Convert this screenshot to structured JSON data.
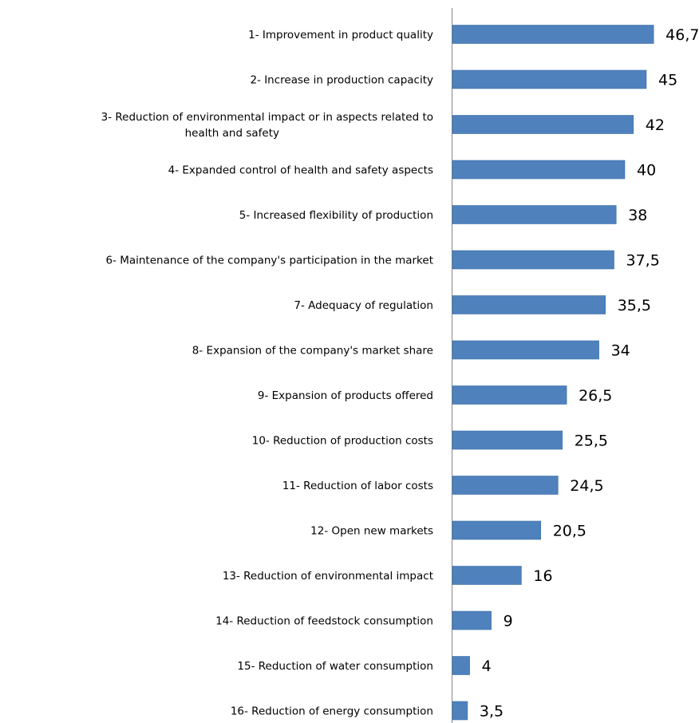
{
  "chart_data": {
    "type": "bar",
    "orientation": "horizontal",
    "categories": [
      "1- Improvement in product quality",
      "2- Increase in production capacity",
      "3- Reduction of environmental impact or in aspects related to health and safety",
      "4- Expanded control of health and safety aspects",
      "5- Increased flexibility of production",
      "6- Maintenance of the company's participation in the market",
      "7- Adequacy of regulation",
      "8- Expansion of the company's market share",
      "9- Expansion of products offered",
      "10- Reduction of production costs",
      "11- Reduction of labor costs",
      "12- Open new markets",
      "13- Reduction of environmental impact",
      "14- Reduction of feedstock consumption",
      "15- Reduction of water consumption",
      "16- Reduction of energy consumption"
    ],
    "category_lines": [
      [
        "1- Improvement in product quality"
      ],
      [
        "2- Increase in production capacity"
      ],
      [
        "3- Reduction of environmental impact or in aspects related to",
        "health and safety"
      ],
      [
        "4- Expanded control of health and safety aspects"
      ],
      [
        "5- Increased flexibility of production"
      ],
      [
        "6- Maintenance of the company's participation in the market"
      ],
      [
        "7- Adequacy of regulation"
      ],
      [
        "8- Expansion of the company's market share"
      ],
      [
        "9- Expansion of products offered"
      ],
      [
        "10- Reduction of production costs"
      ],
      [
        "11- Reduction of labor costs"
      ],
      [
        "12- Open new markets"
      ],
      [
        "13- Reduction of environmental impact"
      ],
      [
        "14- Reduction of feedstock consumption"
      ],
      [
        "15- Reduction of water consumption"
      ],
      [
        "16- Reduction of energy consumption"
      ]
    ],
    "values": [
      46.7,
      45,
      42,
      40,
      38,
      37.5,
      35.5,
      34,
      26.5,
      25.5,
      24.5,
      20.5,
      16,
      9,
      4,
      3.5
    ],
    "value_labels": [
      "46,7",
      "45",
      "42",
      "40",
      "38",
      "37,5",
      "35,5",
      "34",
      "26,5",
      "25,5",
      "24,5",
      "20,5",
      "16",
      "9",
      "4",
      "3,5"
    ],
    "xlim": [
      0,
      50
    ],
    "bar_color": "#4F81BD",
    "grid": false,
    "legend": "none"
  }
}
